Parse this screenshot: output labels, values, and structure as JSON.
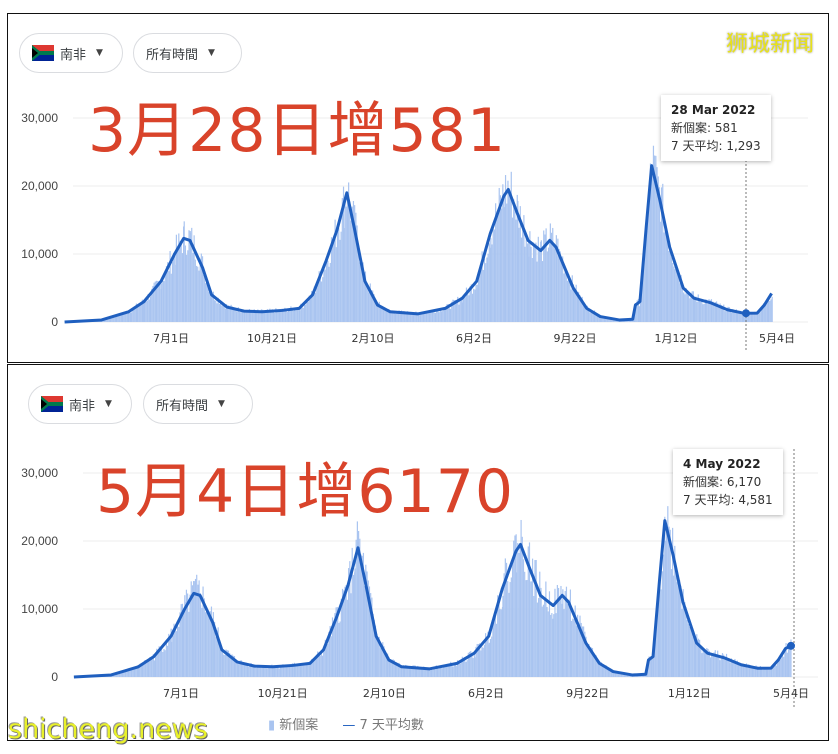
{
  "filters": {
    "country": "南非",
    "country_flag": "south-africa-flag-icon",
    "time_range": "所有時間"
  },
  "watermarks": {
    "top": "狮城新闻",
    "bottom": "shicheng.news"
  },
  "legend": {
    "new_cases": "新個案",
    "avg": "7 天平均數"
  },
  "colors": {
    "line": "#1f5fbf",
    "fill": "#a9c4f0",
    "headline": "#d9432a"
  },
  "chart_data": [
    {
      "type": "area",
      "headline": "3月28日增581",
      "y_ticks": [
        "0",
        "10,000",
        "20,000",
        "30,000"
      ],
      "ylim": [
        0,
        35000
      ],
      "x_ticks": [
        "7月1日",
        "10月21日",
        "2月10日",
        "6月2日",
        "9月22日",
        "1月12日",
        "5月4日"
      ],
      "tooltip": {
        "date": "28 Mar 2022",
        "new_cases_label": "新個案",
        "new_cases": "581",
        "avg_label": "7 天平均",
        "avg": "1,293"
      },
      "series": {
        "x": [
          "2020-03-05",
          "2020-04-15",
          "2020-05-15",
          "2020-06-01",
          "2020-06-20",
          "2020-07-05",
          "2020-07-15",
          "2020-07-22",
          "2020-08-05",
          "2020-08-15",
          "2020-09-01",
          "2020-09-20",
          "2020-10-10",
          "2020-11-01",
          "2020-11-20",
          "2020-12-05",
          "2020-12-20",
          "2021-01-01",
          "2021-01-08",
          "2021-01-12",
          "2021-01-20",
          "2021-02-01",
          "2021-02-15",
          "2021-03-01",
          "2021-04-01",
          "2021-05-01",
          "2021-05-20",
          "2021-06-05",
          "2021-06-20",
          "2021-07-05",
          "2021-07-10",
          "2021-07-20",
          "2021-08-01",
          "2021-08-15",
          "2021-08-25",
          "2021-09-01",
          "2021-09-20",
          "2021-10-05",
          "2021-10-20",
          "2021-11-10",
          "2021-11-25",
          "2021-11-28",
          "2021-12-03",
          "2021-12-10",
          "2021-12-16",
          "2021-12-25",
          "2022-01-05",
          "2022-01-20",
          "2022-02-01",
          "2022-02-20",
          "2022-03-10",
          "2022-03-28",
          "2022-04-12",
          "2022-04-20",
          "2022-04-28"
        ],
        "avg": [
          0,
          300,
          1500,
          3000,
          6000,
          10000,
          12300,
          12000,
          8000,
          4000,
          2200,
          1600,
          1500,
          1700,
          2000,
          4000,
          9000,
          13500,
          17000,
          19000,
          14000,
          6000,
          2500,
          1500,
          1200,
          2000,
          3500,
          6000,
          13000,
          18500,
          19500,
          16000,
          12000,
          10500,
          12000,
          11000,
          5000,
          2000,
          800,
          300,
          400,
          2500,
          3000,
          14000,
          23000,
          18000,
          11000,
          5000,
          3500,
          2800,
          1800,
          1293,
          1300,
          2500,
          4200
        ]
      }
    },
    {
      "type": "area",
      "headline": "5月4日增6170",
      "y_ticks": [
        "0",
        "10,000",
        "20,000",
        "30,000"
      ],
      "ylim": [
        0,
        35000
      ],
      "x_ticks": [
        "7月1日",
        "10月21日",
        "2月10日",
        "6月2日",
        "9月22日",
        "1月12日",
        "5月4日"
      ],
      "tooltip": {
        "date": "4 May 2022",
        "new_cases_label": "新個案",
        "new_cases": "6,170",
        "avg_label": "7 天平均",
        "avg": "4,581"
      },
      "series": {
        "x": [
          "2020-03-05",
          "2020-04-15",
          "2020-05-15",
          "2020-06-01",
          "2020-06-20",
          "2020-07-05",
          "2020-07-15",
          "2020-07-22",
          "2020-08-05",
          "2020-08-15",
          "2020-09-01",
          "2020-09-20",
          "2020-10-10",
          "2020-11-01",
          "2020-11-20",
          "2020-12-05",
          "2020-12-20",
          "2021-01-01",
          "2021-01-08",
          "2021-01-12",
          "2021-01-20",
          "2021-02-01",
          "2021-02-15",
          "2021-03-01",
          "2021-04-01",
          "2021-05-01",
          "2021-05-20",
          "2021-06-05",
          "2021-06-20",
          "2021-07-05",
          "2021-07-10",
          "2021-07-20",
          "2021-08-01",
          "2021-08-15",
          "2021-08-25",
          "2021-09-01",
          "2021-09-20",
          "2021-10-05",
          "2021-10-20",
          "2021-11-10",
          "2021-11-25",
          "2021-11-28",
          "2021-12-03",
          "2021-12-10",
          "2021-12-16",
          "2021-12-25",
          "2022-01-05",
          "2022-01-20",
          "2022-02-01",
          "2022-02-20",
          "2022-03-10",
          "2022-03-28",
          "2022-04-12",
          "2022-04-20",
          "2022-04-28",
          "2022-05-04"
        ],
        "avg": [
          0,
          300,
          1500,
          3000,
          6000,
          10000,
          12300,
          12000,
          8000,
          4000,
          2200,
          1600,
          1500,
          1700,
          2000,
          4000,
          9000,
          13500,
          17000,
          19000,
          14000,
          6000,
          2500,
          1500,
          1200,
          2000,
          3500,
          6000,
          13000,
          18500,
          19500,
          16000,
          12000,
          10500,
          12000,
          11000,
          5000,
          2000,
          800,
          300,
          400,
          2500,
          3000,
          14000,
          23000,
          18000,
          11000,
          5000,
          3500,
          2800,
          1800,
          1293,
          1300,
          2500,
          4200,
          4581
        ]
      }
    }
  ]
}
